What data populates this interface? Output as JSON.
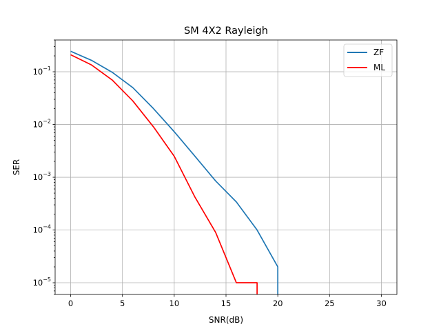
{
  "chart_data": {
    "type": "line",
    "title": "SM 4X2 Rayleigh",
    "xlabel": "SNR(dB)",
    "ylabel": "SER",
    "yscale": "log",
    "xlim": [
      -1.5,
      31.5
    ],
    "ylim": [
      6e-06,
      0.4
    ],
    "xticks": [
      0,
      5,
      10,
      15,
      20,
      25,
      30
    ],
    "yticks": [
      {
        "value": 1e-05,
        "base": "10",
        "exp": "−5"
      },
      {
        "value": 0.0001,
        "base": "10",
        "exp": "−4"
      },
      {
        "value": 0.001,
        "base": "10",
        "exp": "−3"
      },
      {
        "value": 0.01,
        "base": "10",
        "exp": "−2"
      },
      {
        "value": 0.1,
        "base": "10",
        "exp": "−1"
      }
    ],
    "grid": true,
    "legend_position": "top-right",
    "series": [
      {
        "name": "ZF",
        "color": "#1f77b4",
        "x": [
          0,
          2,
          4,
          6,
          8,
          10,
          12,
          14,
          16,
          18,
          20,
          20
        ],
        "y": [
          0.245,
          0.165,
          0.098,
          0.05,
          0.02,
          0.0073,
          0.0025,
          0.00085,
          0.00034,
          0.0001,
          2e-05,
          6e-06
        ]
      },
      {
        "name": "ML",
        "color": "#ff0000",
        "x": [
          0,
          2,
          4,
          6,
          8,
          10,
          12,
          14,
          16,
          18,
          18
        ],
        "y": [
          0.21,
          0.135,
          0.07,
          0.028,
          0.009,
          0.0025,
          0.00042,
          9e-05,
          1e-05,
          1e-05,
          6e-06
        ]
      }
    ]
  }
}
